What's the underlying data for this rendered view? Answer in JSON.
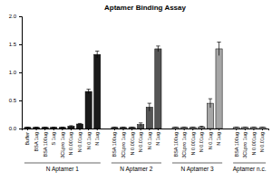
{
  "chart_data": {
    "type": "bar",
    "title": "Aptamer Binding Assay",
    "ylim": [
      0,
      2
    ],
    "yticks": [
      {
        "value": 0,
        "label": "0.0"
      },
      {
        "value": 0.5,
        "label": "0.5"
      },
      {
        "value": 1,
        "label": "1.0"
      },
      {
        "value": 1.5,
        "label": "1.5"
      },
      {
        "value": 2,
        "label": "2.0"
      }
    ],
    "grid": false,
    "series": [
      {
        "name": "N Aptamer 1",
        "color": "#1a1a1a",
        "categories": [
          "Buffer",
          "BSA 1ug",
          "BSA 100ug",
          "S 1ug",
          "3CLpro 1ug",
          "N 0.001ug",
          "N 0.01ug",
          "N 0.1ug",
          "N 1ug"
        ],
        "values": [
          0.02,
          0.02,
          0.02,
          0.02,
          0.02,
          0.04,
          0.08,
          0.66,
          1.32
        ],
        "errors": [
          0.005,
          0.005,
          0.005,
          0.005,
          0.005,
          0.01,
          0.01,
          0.04,
          0.06
        ]
      },
      {
        "name": "N Aptamer 2",
        "color": "#555555",
        "categories": [
          "BSA 100ug",
          "3CLpro 1ug",
          "N 0.001ug",
          "N 0.01ug",
          "N 0.1ug",
          "N 1ug"
        ],
        "values": [
          0.02,
          0.02,
          0.02,
          0.07,
          0.38,
          1.42
        ],
        "errors": [
          0.005,
          0.005,
          0.005,
          0.03,
          0.07,
          0.05
        ]
      },
      {
        "name": "N Aptamer 3",
        "color": "#a6a6a6",
        "categories": [
          "BSA 100ug",
          "3CLpro 1ug",
          "N 0.001ug",
          "N 0.01ug",
          "N 0.1ug",
          "N 1ug"
        ],
        "values": [
          0.02,
          0.02,
          0.02,
          0.03,
          0.45,
          1.42
        ],
        "errors": [
          0.005,
          0.005,
          0.005,
          0.01,
          0.08,
          0.12
        ]
      },
      {
        "name": "Aptamer n.c.",
        "color": "#cccccc",
        "categories": [
          "BSA 100ug",
          "3CLpro 1ug",
          "N 0.001ug",
          "N 0.01ug"
        ],
        "values": [
          0.02,
          0.02,
          0.02,
          0.02
        ],
        "errors": [
          0.005,
          0.005,
          0.005,
          0.005
        ]
      }
    ]
  }
}
